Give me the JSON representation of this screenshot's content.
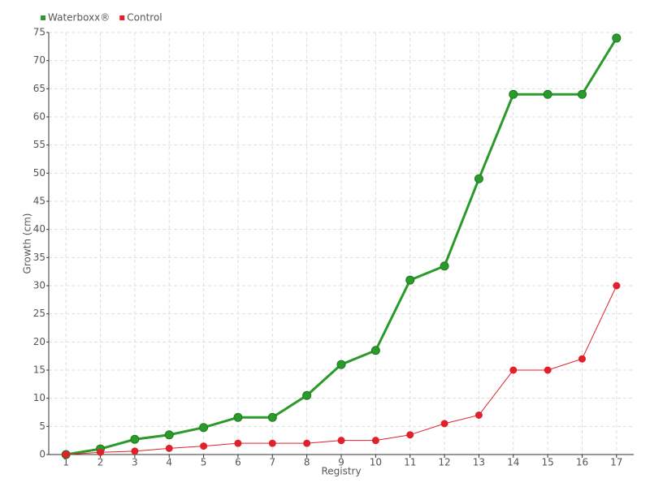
{
  "chart_data": {
    "type": "line",
    "x_label": "Registry",
    "y_label": "Growth (cm)",
    "categories": [
      "1",
      "2",
      "3",
      "4",
      "5",
      "6",
      "7",
      "8",
      "9",
      "10",
      "11",
      "12",
      "13",
      "14",
      "15",
      "16",
      "17"
    ],
    "series": [
      {
        "name": "Waterboxx®",
        "color": "#2a9a2a",
        "values": [
          0,
          1,
          2.7,
          3.5,
          4.8,
          6.6,
          6.6,
          10.5,
          16,
          18.5,
          31,
          33.5,
          49,
          64,
          64,
          64,
          74
        ]
      },
      {
        "name": "Control",
        "color": "#e0202a",
        "values": [
          0,
          0.4,
          0.6,
          1.1,
          1.5,
          2,
          2,
          2,
          2.5,
          2.5,
          3.5,
          5.5,
          7,
          15,
          15,
          17,
          30
        ]
      }
    ],
    "ylim": [
      0,
      75
    ],
    "yticks": [
      0,
      5,
      10,
      15,
      20,
      25,
      30,
      35,
      40,
      45,
      50,
      55,
      60,
      65,
      70,
      75
    ],
    "grid": true,
    "legend": "top-left"
  }
}
